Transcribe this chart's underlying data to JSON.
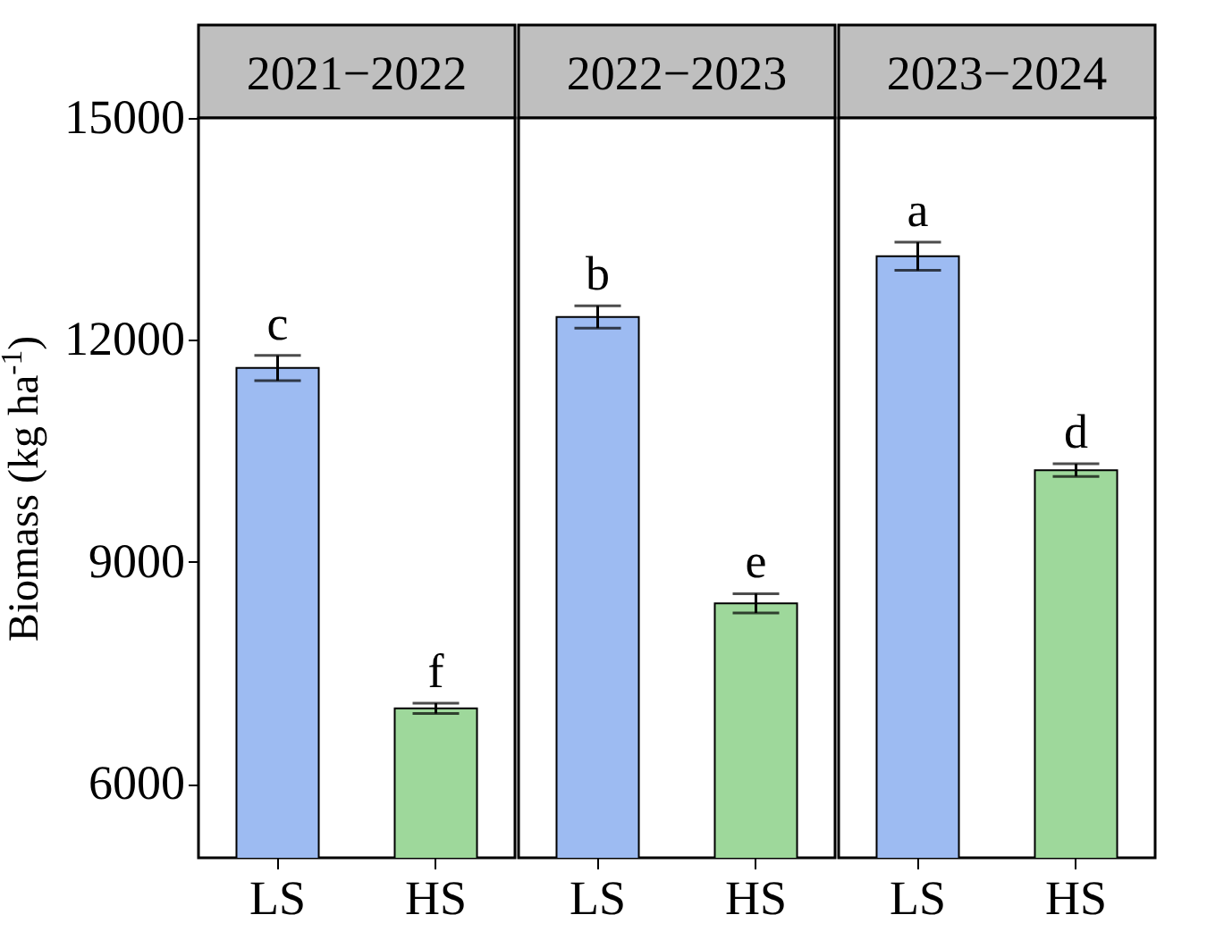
{
  "chart_data": [
    {
      "type": "bar",
      "title": "2021−2022",
      "ylabel": "Biomass (kg ha$^{-1}$)",
      "categories": [
        "LS",
        "HS"
      ],
      "values": [
        11620,
        7020
      ],
      "errors": [
        170,
        70
      ],
      "colors": [
        "#9dbbf2",
        "#9ed89b"
      ],
      "ylim": [
        5000,
        15000
      ],
      "yticks": [
        6000,
        9000,
        12000,
        15000
      ],
      "annotations": [
        {
          "text": "c",
          "x": "LS",
          "y": 11790
        },
        {
          "text": "f",
          "x": "HS",
          "y": 7090
        }
      ]
    },
    {
      "type": "bar",
      "title": "2022−2023",
      "categories": [
        "LS",
        "HS"
      ],
      "values": [
        12310,
        8440
      ],
      "errors": [
        150,
        130
      ],
      "colors": [
        "#9dbbf2",
        "#9ed89b"
      ],
      "ylim": [
        5000,
        15000
      ],
      "yticks": [
        6000,
        9000,
        12000,
        15000
      ],
      "tick_labels": "x",
      "annotations": [
        {
          "text": "b",
          "x": "LS",
          "y": 12460
        },
        {
          "text": "e",
          "x": "HS",
          "y": 8570
        }
      ]
    },
    {
      "type": "bar",
      "title": "2023−2024",
      "categories": [
        "LS",
        "HS"
      ],
      "values": [
        13130,
        10240
      ],
      "errors": [
        190,
        85
      ],
      "colors": [
        "#9dbbf2",
        "#9ed89b"
      ],
      "ylim": [
        5000,
        15000
      ],
      "yticks": [
        6000,
        9000,
        12000,
        15000
      ],
      "tick_labels": "x",
      "annotations": [
        {
          "text": "a",
          "x": "LS",
          "y": 13320
        },
        {
          "text": "d",
          "x": "HS",
          "y": 10325
        }
      ]
    }
  ]
}
